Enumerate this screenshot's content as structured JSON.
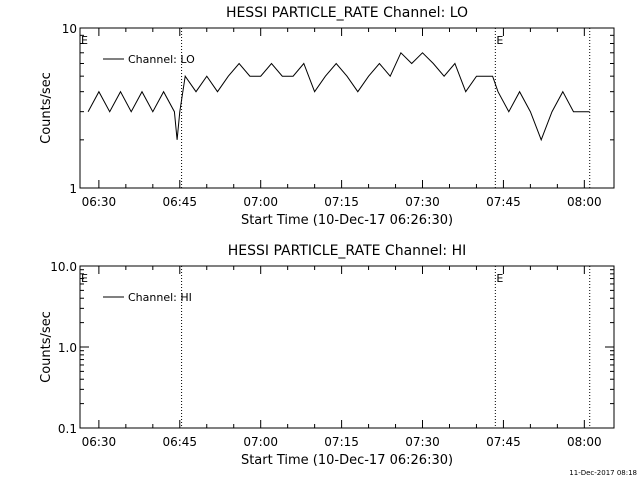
{
  "footer": {
    "timestamp": "11-Dec-2017 08:18"
  },
  "chart_data": [
    {
      "type": "line",
      "title": "HESSI PARTICLE_RATE Channel: LO",
      "xlabel": "Start Time (10-Dec-17 06:26:30)",
      "ylabel": "Counts/sec",
      "yscale": "log",
      "ylim": [
        1,
        10
      ],
      "xlim": [
        "06:26:30",
        "08:05:30"
      ],
      "y_tick_labels": [
        "1",
        "10"
      ],
      "x_tick_labels": [
        "06:30",
        "06:45",
        "07:00",
        "07:15",
        "07:30",
        "07:45",
        "08:00"
      ],
      "event_lines": [
        "06:45:20",
        "07:43:30",
        "08:01:00"
      ],
      "event_markers": [
        {
          "label": "E",
          "at": "06:26:30"
        },
        {
          "label": "E",
          "at": "07:43:30"
        }
      ],
      "legend": {
        "position": "top-left",
        "entries": [
          "Channel: LO"
        ]
      },
      "series": [
        {
          "name": "Channel: LO",
          "x": [
            "06:28:00",
            "06:30:00",
            "06:32:00",
            "06:34:00",
            "06:36:00",
            "06:38:00",
            "06:40:00",
            "06:42:00",
            "06:44:00",
            "06:44:30",
            "06:45:00",
            "06:46:00",
            "06:48:00",
            "06:50:00",
            "06:52:00",
            "06:54:00",
            "06:56:00",
            "06:58:00",
            "07:00:00",
            "07:02:00",
            "07:04:00",
            "07:06:00",
            "07:08:00",
            "07:10:00",
            "07:12:00",
            "07:14:00",
            "07:16:00",
            "07:18:00",
            "07:20:00",
            "07:22:00",
            "07:24:00",
            "07:26:00",
            "07:28:00",
            "07:30:00",
            "07:32:00",
            "07:34:00",
            "07:36:00",
            "07:38:00",
            "07:40:00",
            "07:42:00",
            "07:43:00",
            "07:44:00",
            "07:46:00",
            "07:48:00",
            "07:50:00",
            "07:52:00",
            "07:54:00",
            "07:56:00",
            "07:58:00",
            "08:00:00",
            "08:01:00"
          ],
          "y": [
            3,
            4,
            3,
            4,
            3,
            4,
            3,
            4,
            3,
            2,
            3,
            5,
            4,
            5,
            4,
            5,
            6,
            5,
            5,
            6,
            5,
            5,
            6,
            4,
            5,
            6,
            5,
            4,
            5,
            6,
            5,
            7,
            6,
            7,
            6,
            5,
            6,
            4,
            5,
            5,
            5,
            4,
            3,
            4,
            3,
            2,
            3,
            4,
            3,
            3,
            3
          ]
        }
      ]
    },
    {
      "type": "line",
      "title": "HESSI PARTICLE_RATE Channel: HI",
      "xlabel": "Start Time (10-Dec-17 06:26:30)",
      "ylabel": "Counts/sec",
      "yscale": "log",
      "ylim": [
        0.1,
        10.0
      ],
      "xlim": [
        "06:26:30",
        "08:05:30"
      ],
      "y_tick_labels": [
        "0.1",
        "1.0",
        "10.0"
      ],
      "x_tick_labels": [
        "06:30",
        "06:45",
        "07:00",
        "07:15",
        "07:30",
        "07:45",
        "08:00"
      ],
      "event_lines": [
        "06:45:20",
        "07:43:30",
        "08:01:00"
      ],
      "event_markers": [
        {
          "label": "E",
          "at": "06:26:30"
        },
        {
          "label": "E",
          "at": "07:43:30"
        }
      ],
      "legend": {
        "position": "top-left",
        "entries": [
          "Channel: HI"
        ]
      },
      "series": [
        {
          "name": "Channel: HI",
          "x": [],
          "y": []
        }
      ]
    }
  ]
}
